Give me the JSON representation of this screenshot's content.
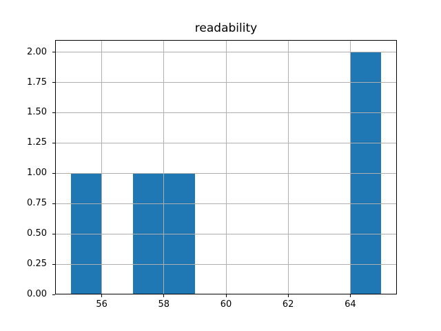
{
  "chart_data": {
    "type": "bar",
    "subtype": "histogram",
    "title": "readability",
    "xlabel": "",
    "ylabel": "",
    "bin_edges": [
      55,
      56,
      57,
      58,
      59,
      60,
      61,
      62,
      63,
      64,
      65
    ],
    "counts": [
      1,
      0,
      1,
      1,
      0,
      0,
      0,
      0,
      0,
      2
    ],
    "xlim": [
      54.5,
      65.5
    ],
    "ylim": [
      0,
      2.1
    ],
    "x_ticks": [
      {
        "value": 56,
        "label": "56"
      },
      {
        "value": 58,
        "label": "58"
      },
      {
        "value": 60,
        "label": "60"
      },
      {
        "value": 62,
        "label": "62"
      },
      {
        "value": 64,
        "label": "64"
      }
    ],
    "y_ticks": [
      {
        "value": 0.0,
        "label": "0.00"
      },
      {
        "value": 0.25,
        "label": "0.25"
      },
      {
        "value": 0.5,
        "label": "0.50"
      },
      {
        "value": 0.75,
        "label": "0.75"
      },
      {
        "value": 1.0,
        "label": "1.00"
      },
      {
        "value": 1.25,
        "label": "1.25"
      },
      {
        "value": 1.5,
        "label": "1.50"
      },
      {
        "value": 1.75,
        "label": "1.75"
      },
      {
        "value": 2.0,
        "label": "2.00"
      }
    ],
    "grid": true,
    "grid_above_bars": true,
    "legend": false,
    "bar_color": "#1f77b4",
    "grid_color": "#b0b0b0",
    "axis_color": "#000000",
    "background_color": "#ffffff"
  }
}
